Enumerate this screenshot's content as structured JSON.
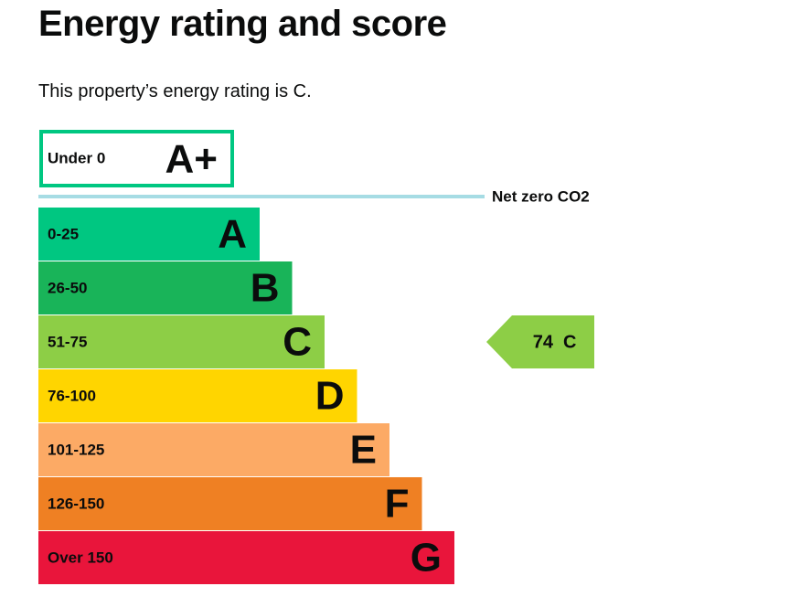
{
  "header": {
    "title": "Energy rating and score"
  },
  "summary": "This property’s energy rating is C.",
  "top_band": {
    "range": "Under 0",
    "letter": "A+",
    "color": "#00c781"
  },
  "net_zero": {
    "label": "Net zero CO2",
    "color": "#a6dce4"
  },
  "bands": [
    {
      "range": "0-25",
      "letter": "A",
      "color": "#00c781"
    },
    {
      "range": "26-50",
      "letter": "B",
      "color": "#19b459"
    },
    {
      "range": "51-75",
      "letter": "C",
      "color": "#8dce46"
    },
    {
      "range": "76-100",
      "letter": "D",
      "color": "#ffd500"
    },
    {
      "range": "101-125",
      "letter": "E",
      "color": "#fcaa65"
    },
    {
      "range": "126-150",
      "letter": "F",
      "color": "#ef8023"
    },
    {
      "range": "Over 150",
      "letter": "G",
      "color": "#e9153b"
    }
  ],
  "current": {
    "score": 74,
    "letter": "C"
  }
}
